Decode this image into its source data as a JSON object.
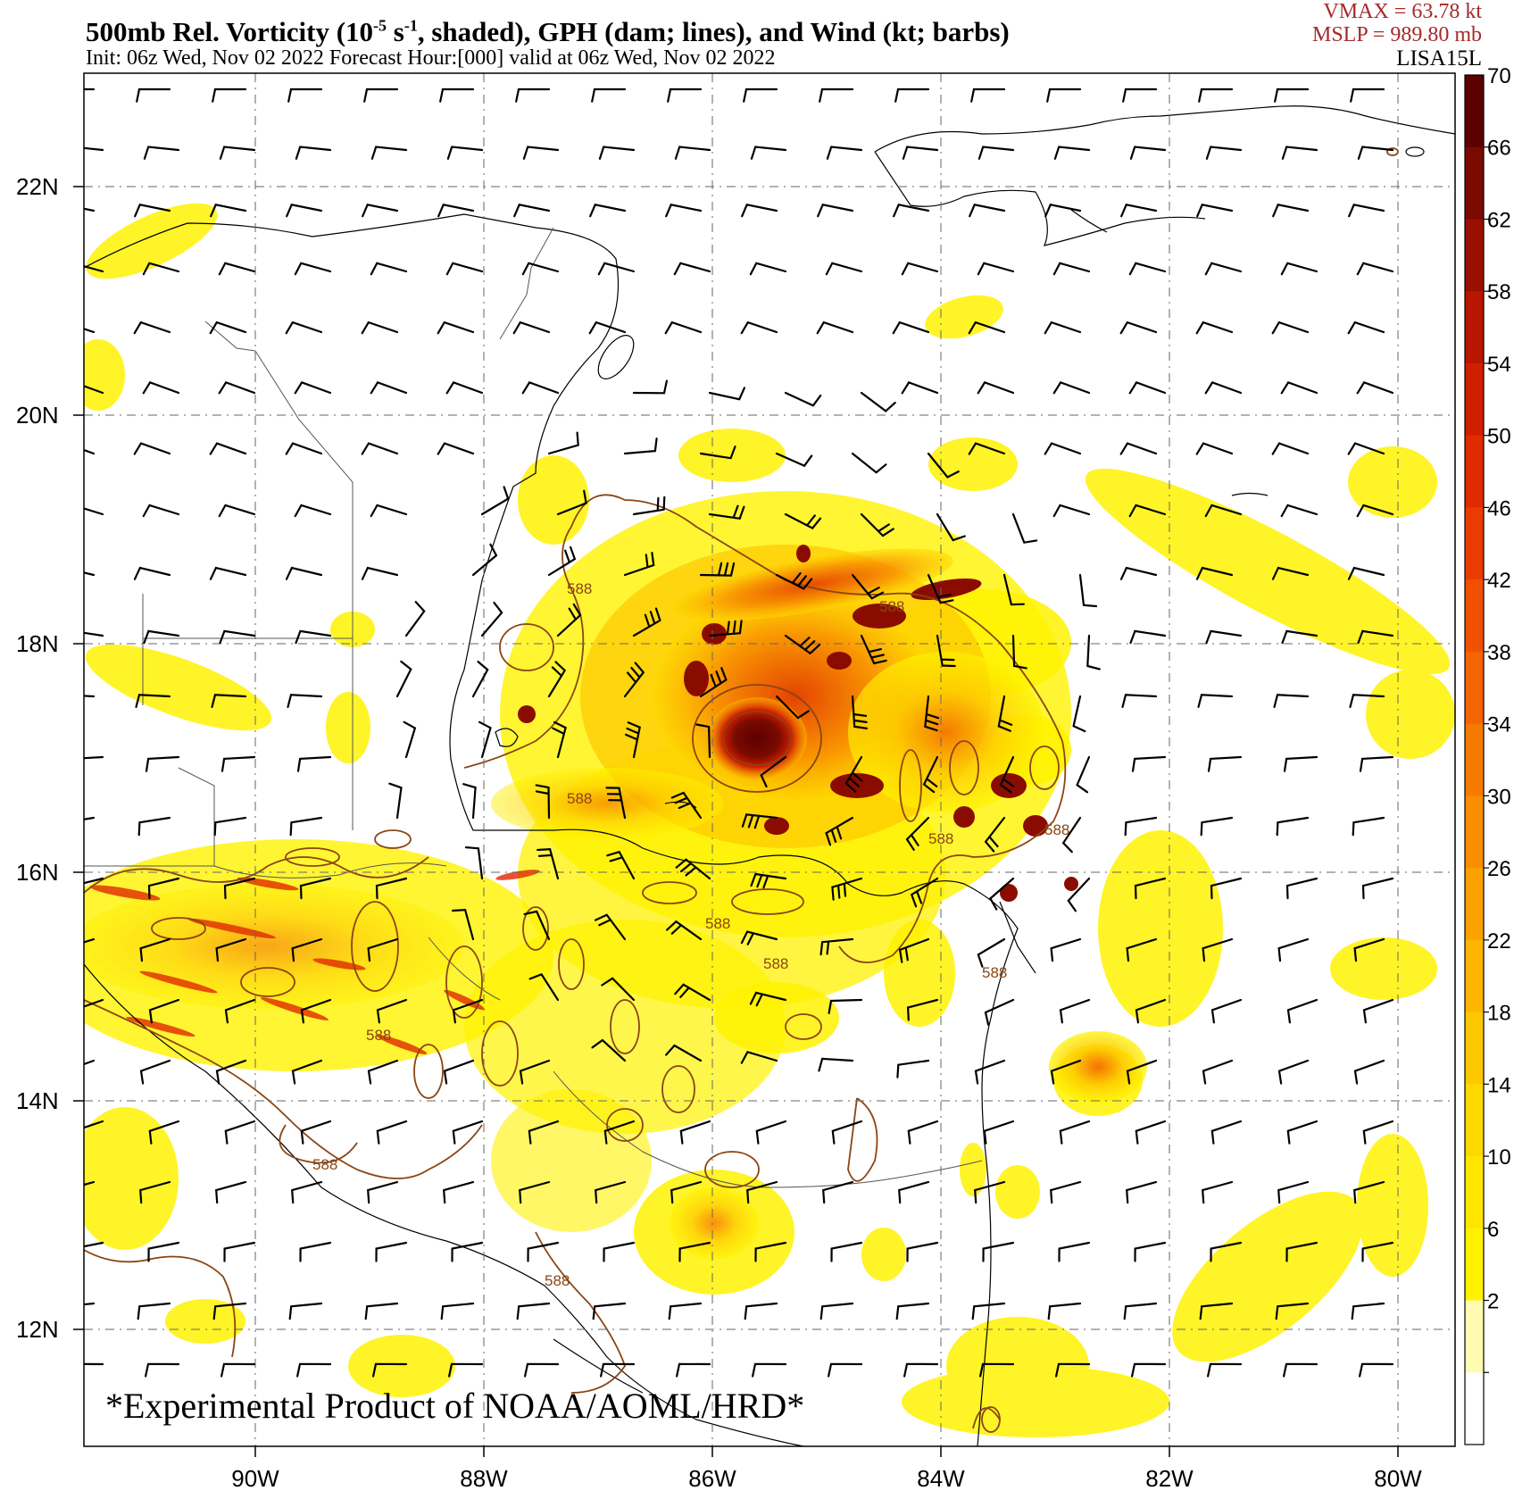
{
  "header": {
    "title_main": "500mb Rel. Vorticity (10",
    "title_exp": "-5",
    "title_unit": " s",
    "title_exp2": "-1",
    "title_rest": ", shaded), GPH (dam; lines), and Wind (kt; barbs)",
    "subtitle": "Init: 06z Wed, Nov 02 2022  Forecast Hour:[000]  valid at 06z Wed, Nov 02 2022",
    "vmax": "VMAX =   63.78 kt",
    "mslp": "MSLP =  989.80 mb",
    "storm_id": "LISA15L"
  },
  "map": {
    "lat_labels": [
      "22N",
      "20N",
      "18N",
      "16N",
      "14N",
      "12N"
    ],
    "lon_labels": [
      "90W",
      "88W",
      "86W",
      "84W",
      "82W",
      "80W"
    ],
    "contour_label": "588",
    "watermark": "*Experimental Product of NOAA/AOML/HRD*"
  },
  "colorbar": {
    "labels": [
      "70",
      "66",
      "62",
      "58",
      "54",
      "50",
      "46",
      "42",
      "38",
      "34",
      "30",
      "26",
      "22",
      "18",
      "14",
      "10",
      "6",
      "2"
    ],
    "colors": [
      "#5c0000",
      "#7a0a00",
      "#9a1000",
      "#b81600",
      "#d01e00",
      "#e02a00",
      "#ea3c00",
      "#f05000",
      "#f46400",
      "#f77a00",
      "#f98e00",
      "#fba200",
      "#fcb600",
      "#fdc800",
      "#fed900",
      "#ffe600",
      "#fff200",
      "#fffbb0",
      "#ffffff"
    ]
  }
}
